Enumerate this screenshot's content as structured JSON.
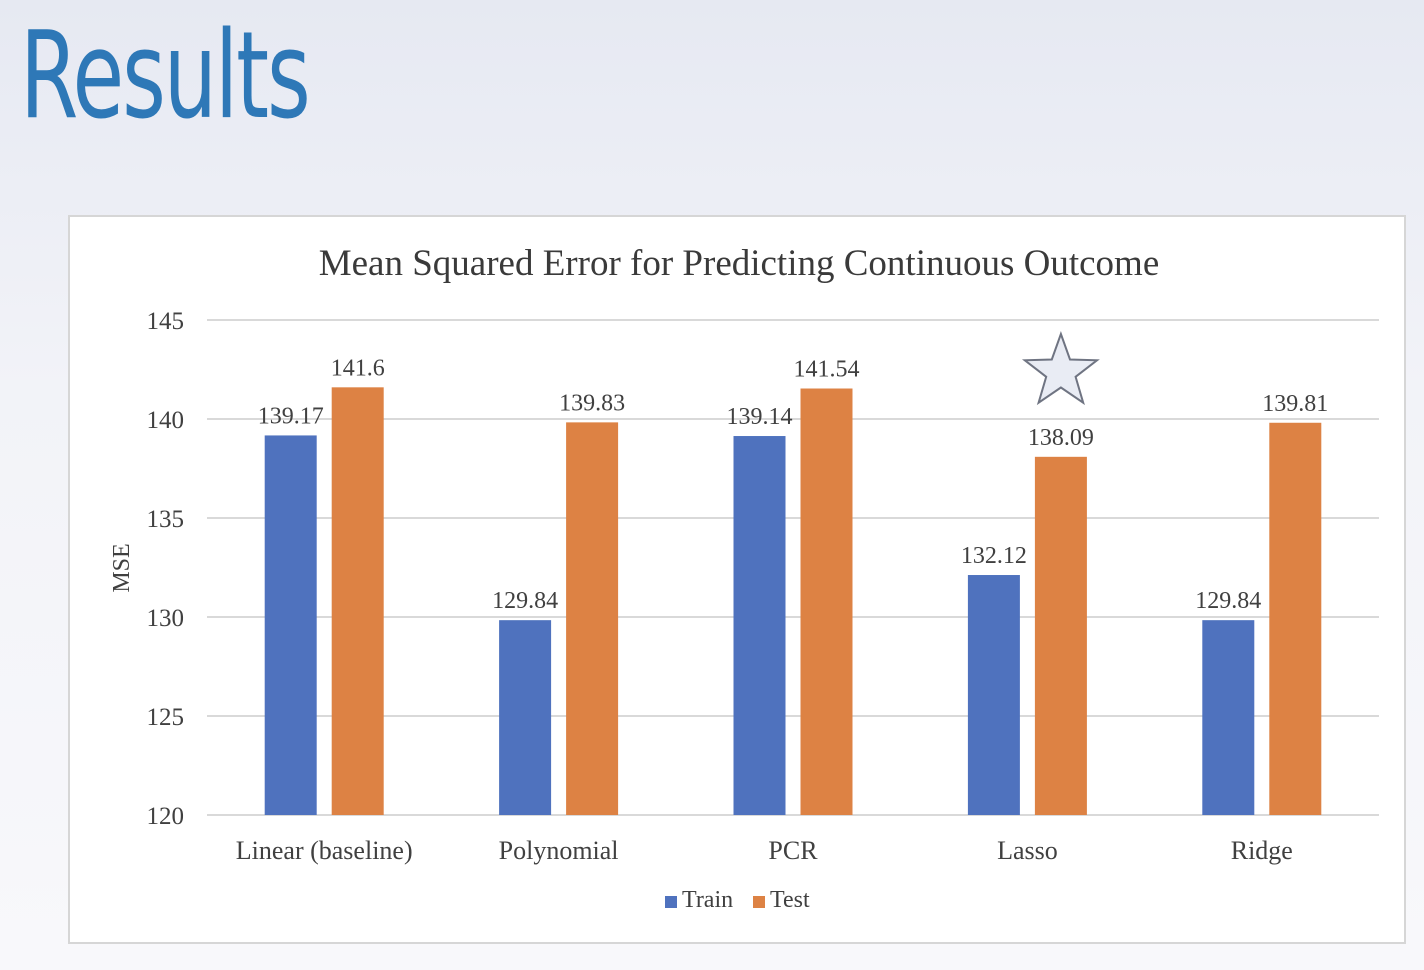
{
  "slide": {
    "title": "Results"
  },
  "chart_data": {
    "type": "bar",
    "title": "Mean Squared Error for Predicting Continuous Outcome",
    "xlabel": "",
    "ylabel": "MSE",
    "ylim": [
      120,
      145
    ],
    "yticks": [
      120,
      125,
      130,
      135,
      140,
      145
    ],
    "grid": true,
    "legend_position": "bottom",
    "categories": [
      "Linear (baseline)",
      "Polynomial",
      "PCR",
      "Lasso",
      "Ridge"
    ],
    "series": [
      {
        "name": "Train",
        "color": "#4f72be",
        "values": [
          139.17,
          129.84,
          139.14,
          132.12,
          129.84
        ],
        "labels": [
          "139.17",
          "129.84",
          "139.14",
          "132.12",
          "129.84"
        ]
      },
      {
        "name": "Test",
        "color": "#dd8244",
        "values": [
          141.6,
          139.83,
          141.54,
          138.09,
          139.81
        ],
        "labels": [
          "141.6",
          "139.83",
          "141.54",
          "138.09",
          "139.81"
        ]
      }
    ],
    "annotation": {
      "shape": "star-icon",
      "category": "Lasso",
      "series": "Test",
      "fill": "#e9ecf4",
      "stroke": "#6f7482"
    },
    "colors": {
      "grid": "#d9d9d9",
      "text": "#404040",
      "title": "#3a3a3a"
    }
  }
}
